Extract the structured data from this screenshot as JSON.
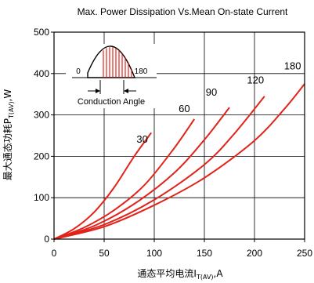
{
  "chart_data": {
    "type": "line",
    "title": "Max. Power Dissipation Vs.Mean On-state Current",
    "xlabel_prefix": "通态平均电流I",
    "xlabel_sub": "T(AV)",
    "xlabel_suffix": ",A",
    "ylabel_prefix": "最大通态功耗P",
    "ylabel_sub": "T(AV)",
    "ylabel_suffix": ",W",
    "xlim": [
      0,
      250
    ],
    "ylim": [
      0,
      500
    ],
    "xticks": [
      "0",
      "50",
      "100",
      "150",
      "200",
      "250"
    ],
    "yticks": [
      "0",
      "100",
      "200",
      "300",
      "400",
      "500"
    ],
    "grid": true,
    "series_color": "#e2231a",
    "series": [
      {
        "name": "30",
        "x": [
          0,
          20,
          40,
          60,
          80,
          97
        ],
        "y": [
          0,
          25,
          65,
          125,
          200,
          257
        ]
      },
      {
        "name": "60",
        "x": [
          0,
          30,
          60,
          90,
          120,
          140
        ],
        "y": [
          0,
          28,
          70,
          130,
          220,
          290
        ]
      },
      {
        "name": "90",
        "x": [
          0,
          40,
          80,
          120,
          150,
          175
        ],
        "y": [
          0,
          32,
          85,
          160,
          240,
          318
        ]
      },
      {
        "name": "120",
        "x": [
          0,
          50,
          100,
          150,
          180,
          210
        ],
        "y": [
          0,
          35,
          95,
          180,
          255,
          345
        ]
      },
      {
        "name": "180",
        "x": [
          0,
          50,
          100,
          150,
          200,
          230,
          250
        ],
        "y": [
          0,
          30,
          82,
          148,
          238,
          315,
          375
        ]
      }
    ],
    "series_label_values": [
      {
        "text": "30",
        "x": 88,
        "y": 233
      },
      {
        "text": "60",
        "x": 130,
        "y": 307
      },
      {
        "text": "90",
        "x": 157,
        "y": 347
      },
      {
        "text": "120",
        "x": 201,
        "y": 376
      },
      {
        "text": "180",
        "x": 238,
        "y": 410
      }
    ],
    "inset": {
      "label_start": "0",
      "label_end": "180",
      "caption": "Conduction Angle"
    }
  }
}
